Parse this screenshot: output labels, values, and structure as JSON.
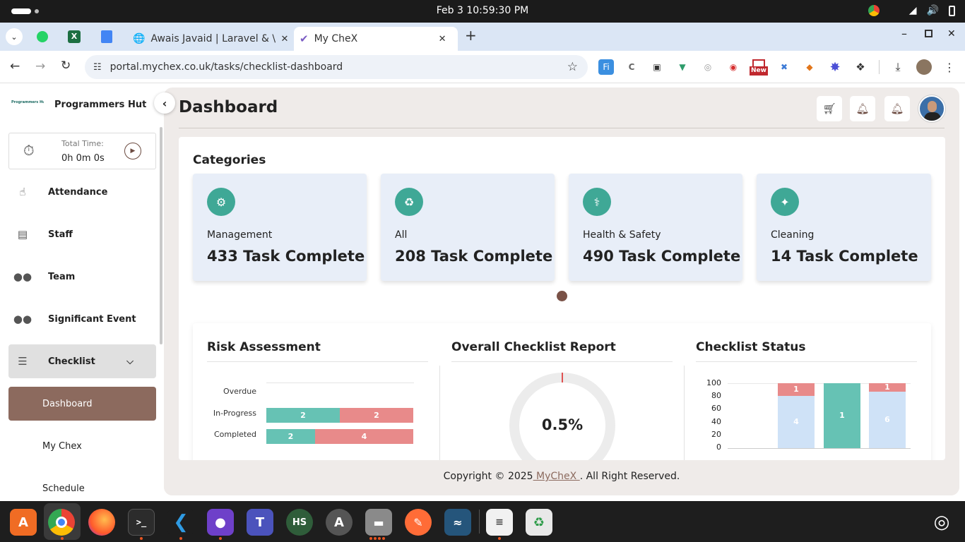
{
  "system": {
    "clock": "Feb 3  10:59:30 PM"
  },
  "browser": {
    "tabs": [
      {
        "label": "Awais Javaid | Laravel & \\"
      },
      {
        "label": "My CheX"
      }
    ],
    "url": "portal.mychex.co.uk/tasks/checklist-dashboard",
    "extension_badge": "New"
  },
  "sidebar": {
    "org_name": "Programmers Hut",
    "logo_text": "Programmers Hut",
    "timer_label": "Total Time:",
    "timer_value": "0h 0m 0s",
    "items": [
      {
        "label": "Attendance",
        "icon": "touch-icon"
      },
      {
        "label": "Staff",
        "icon": "id-badge-icon"
      },
      {
        "label": "Team",
        "icon": "users-icon"
      },
      {
        "label": "Significant Event",
        "icon": "users-icon"
      },
      {
        "label": "Checklist",
        "icon": "list-icon"
      }
    ],
    "subitems": [
      {
        "label": "Dashboard",
        "active": true
      },
      {
        "label": "My Chex"
      },
      {
        "label": "Schedule"
      }
    ]
  },
  "header": {
    "title": "Dashboard"
  },
  "categories": {
    "title": "Categories",
    "cards": [
      {
        "name": "Management",
        "count": "433 Task Complete"
      },
      {
        "name": "All",
        "count": "208 Task Complete"
      },
      {
        "name": "Health & Safety",
        "count": "490 Task Complete"
      },
      {
        "name": "Cleaning",
        "count": "14 Task Complete"
      }
    ]
  },
  "risk": {
    "title": "Risk Assessment",
    "rows": [
      {
        "label": "Overdue",
        "values": []
      },
      {
        "label": "In-Progress",
        "values": [
          2,
          2
        ]
      },
      {
        "label": "Completed",
        "values": [
          2,
          4
        ]
      }
    ]
  },
  "overall": {
    "title": "Overall Checklist Report",
    "percent": "0.5%"
  },
  "status": {
    "title": "Checklist Status",
    "yticks": [
      "100",
      "80",
      "60",
      "40",
      "20",
      "0"
    ],
    "bars": [
      {
        "lower": "4",
        "upper": "1"
      },
      {
        "lower": "1",
        "upper": ""
      },
      {
        "lower": "6",
        "upper": "1"
      }
    ]
  },
  "footer": {
    "prefix": "Copyright © 2025",
    "brand": " MyCheX ",
    "suffix": ". All Right Reserved."
  },
  "colors": {
    "accent": "#8c6a5e",
    "teal": "#66c2b4",
    "salmon": "#e88a8a",
    "lightblue": "#cfe2f7"
  }
}
